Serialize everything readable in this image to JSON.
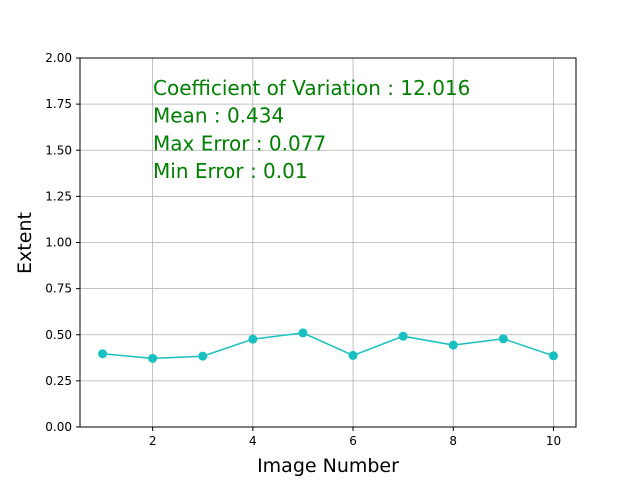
{
  "chart_data": {
    "type": "line",
    "title": "",
    "xlabel": "Image Number",
    "ylabel": "Extent",
    "xlim": [
      0.55,
      10.45
    ],
    "ylim": [
      0.0,
      2.0
    ],
    "xticks": [
      2,
      4,
      6,
      8,
      10
    ],
    "xtick_labels": [
      "2",
      "4",
      "6",
      "8",
      "10"
    ],
    "yticks": [
      0.0,
      0.25,
      0.5,
      0.75,
      1.0,
      1.25,
      1.5,
      1.75,
      2.0
    ],
    "ytick_labels": [
      "0.00",
      "0.25",
      "0.50",
      "0.75",
      "1.00",
      "1.25",
      "1.50",
      "1.75",
      "2.00"
    ],
    "grid": true,
    "series": [
      {
        "color": "#17bfc0",
        "marker": "circle",
        "x": [
          1,
          2,
          3,
          4,
          5,
          6,
          7,
          8,
          9,
          10
        ],
        "y": [
          0.397,
          0.372,
          0.384,
          0.476,
          0.51,
          0.388,
          0.492,
          0.444,
          0.478,
          0.386
        ]
      }
    ],
    "annotations": {
      "color": "#008000",
      "lines": [
        "Coefficient of Variation : 12.016",
        "Mean : 0.434",
        "Max Error : 0.077",
        "Min Error : 0.01"
      ]
    }
  }
}
